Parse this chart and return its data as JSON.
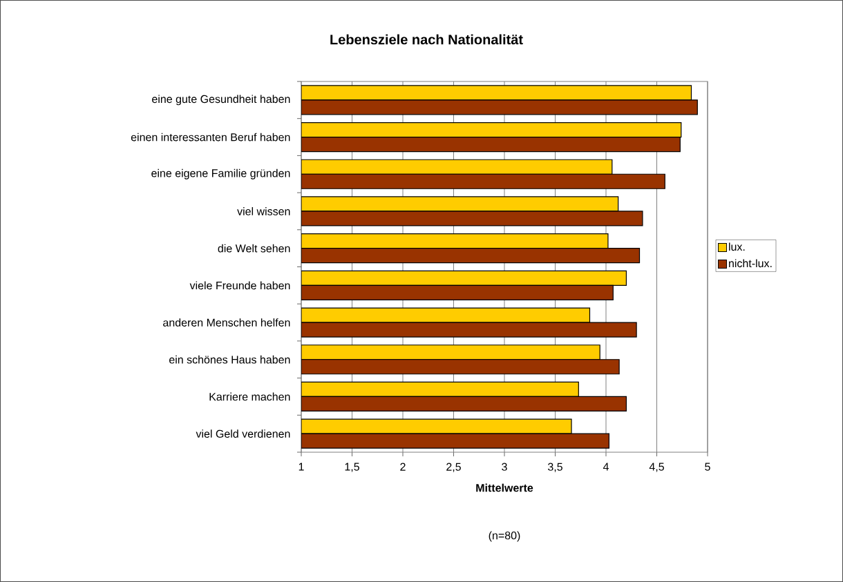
{
  "chart_data": {
    "type": "bar",
    "orientation": "horizontal",
    "title": "Lebensziele nach Nationalität",
    "xlabel": "Mittelwerte",
    "annotations": [
      "(n=80)"
    ],
    "categories": [
      "eine gute Gesundheit haben",
      "einen interessanten Beruf haben",
      "eine eigene Familie gründen",
      "viel wissen",
      "die Welt sehen",
      "viele Freunde haben",
      "anderen Menschen helfen",
      "ein schönes Haus haben",
      "Karriere machen",
      "viel Geld verdienen"
    ],
    "series": [
      {
        "name": "lux.",
        "color": "#ffcc00",
        "values": [
          4.84,
          4.74,
          4.06,
          4.12,
          4.02,
          4.2,
          3.84,
          3.94,
          3.73,
          3.66
        ]
      },
      {
        "name": "nicht-lux.",
        "color": "#993300",
        "values": [
          4.9,
          4.73,
          4.58,
          4.36,
          4.33,
          4.07,
          4.3,
          4.13,
          4.2,
          4.03
        ]
      }
    ],
    "xlim": [
      1,
      5
    ],
    "xticks": [
      1,
      {
        "value": 1.5,
        "label": "1,5"
      },
      2,
      {
        "value": 2.5,
        "label": "2,5"
      },
      3,
      {
        "value": 3.5,
        "label": "3,5"
      },
      4,
      {
        "value": 4.5,
        "label": "4,5"
      },
      5
    ],
    "grid": "x",
    "legend": "right"
  }
}
